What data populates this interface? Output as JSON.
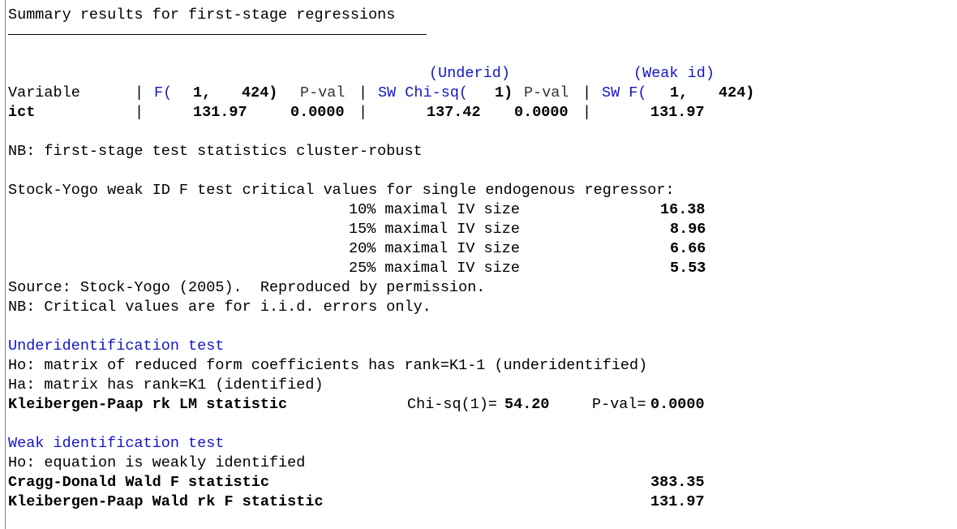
{
  "summary_title": "Summary results for first-stage regressions",
  "header_line1": {
    "underid": "(Underid)",
    "weakid": "(Weak id)"
  },
  "header_line2": {
    "variable": "Variable",
    "f_label": "F(",
    "f_df1": "1,",
    "f_df2": "424)",
    "pval": "P-val",
    "sw_chi": "SW Chi-sq(",
    "chi_df": "1)",
    "pval2": "P-val",
    "sw_f": "SW F(",
    "swf_df1": "1,",
    "swf_df2": "424)"
  },
  "row_ict": {
    "name": "ict",
    "f": "131.97",
    "pval": "0.0000",
    "sw_chi": "137.42",
    "pval2": "0.0000",
    "sw_f": "131.97"
  },
  "nb_cluster": "NB: first-stage test statistics cluster-robust",
  "stock_yogo_title": "Stock-Yogo weak ID F test critical values for single endogenous regressor:",
  "critical_values": [
    {
      "label": "10% maximal IV size",
      "value": "16.38"
    },
    {
      "label": "15% maximal IV size",
      "value": "8.96"
    },
    {
      "label": "20% maximal IV size",
      "value": "6.66"
    },
    {
      "label": "25% maximal IV size",
      "value": "5.53"
    }
  ],
  "source": "Source: Stock-Yogo (2005).  Reproduced by permission.",
  "nb_iid": "NB: Critical values are for i.i.d. errors only.",
  "underid": {
    "title": "Underidentification test",
    "ho": "Ho: matrix of reduced form coefficients has rank=K1-1 (underidentified)",
    "ha": "Ha: matrix has rank=K1 (identified)",
    "stat_label": "Kleibergen-Paap rk LM statistic",
    "chi_label": "Chi-sq(1)=",
    "chi_value": "54.20",
    "pval_label": "P-val=",
    "pval_value": "0.0000"
  },
  "weakid": {
    "title": "Weak identification test",
    "ho": "Ho: equation is weakly identified",
    "cd_label": "Cragg-Donald Wald F statistic",
    "cd_value": "383.35",
    "kp_label": "Kleibergen-Paap Wald rk F statistic",
    "kp_value": "131.97"
  }
}
